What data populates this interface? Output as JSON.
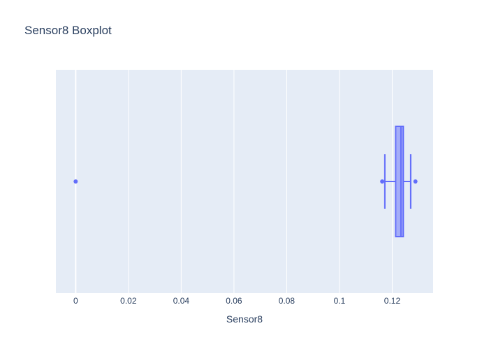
{
  "chart_data": {
    "type": "box",
    "title": "Sensor8 Boxplot",
    "xlabel": "Sensor8",
    "ylabel": "",
    "xlim": [
      -0.0075,
      0.1355
    ],
    "x_ticks": [
      0,
      0.02,
      0.04,
      0.06,
      0.08,
      0.1,
      0.12
    ],
    "x_tick_labels": [
      "0",
      "0.02",
      "0.04",
      "0.06",
      "0.08",
      "0.1",
      "0.12"
    ],
    "grid": true,
    "box": {
      "q1": 0.1213,
      "median": 0.1233,
      "q3": 0.1242,
      "lower_fence": 0.1172,
      "upper_fence": 0.127,
      "outliers": [
        0,
        0.1162,
        0.1288
      ]
    },
    "colors": {
      "plot_bg": "#E5ECF6",
      "grid": "#FFFFFF",
      "box_line": "#636EFA",
      "box_fill": "rgba(99,110,250,0.5)",
      "text": "#2a3f5f",
      "tick_text": "#2a3f5f"
    }
  }
}
